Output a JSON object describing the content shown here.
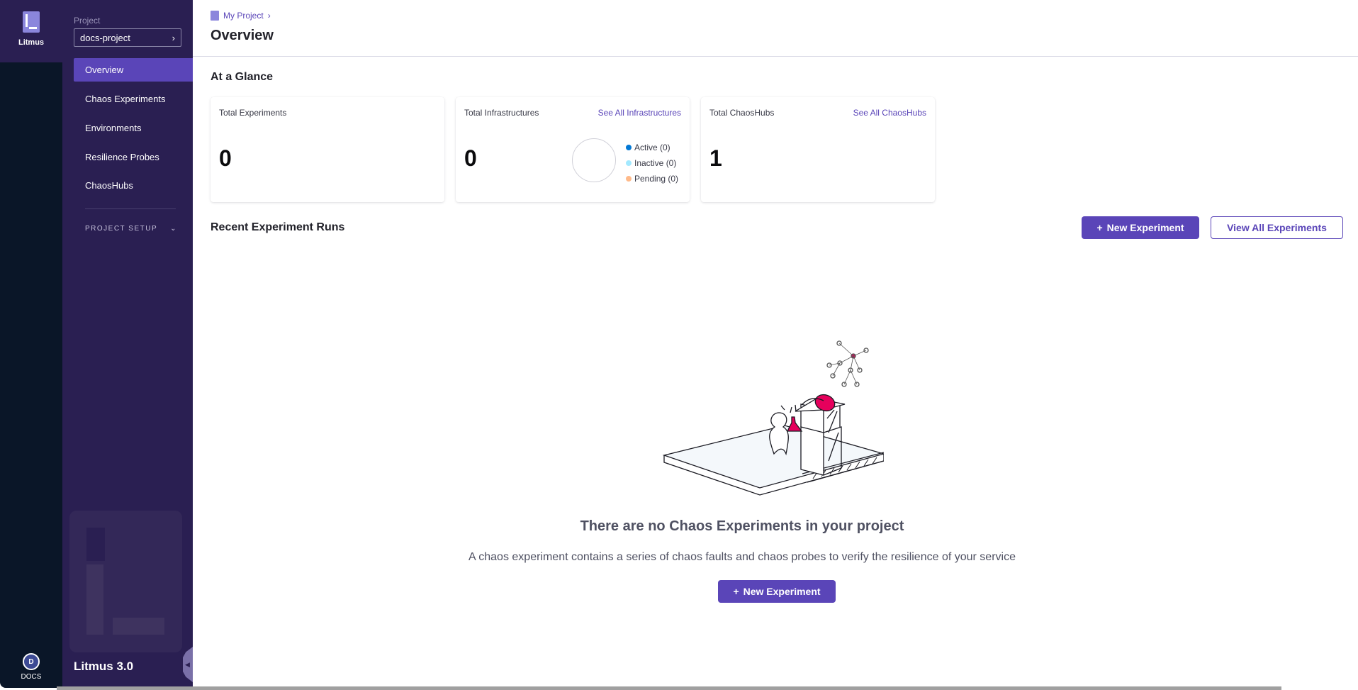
{
  "rail": {
    "brand": "Litmus",
    "docs_initial": "D",
    "docs_label": "DOCS"
  },
  "nav": {
    "project_label": "Project",
    "project_value": "docs-project",
    "items": [
      {
        "label": "Overview",
        "active": true
      },
      {
        "label": "Chaos Experiments"
      },
      {
        "label": "Environments"
      },
      {
        "label": "Resilience Probes"
      },
      {
        "label": "ChaosHubs"
      }
    ],
    "project_setup": "PROJECT SETUP",
    "version": "Litmus 3.0"
  },
  "header": {
    "breadcrumb": "My Project",
    "title": "Overview"
  },
  "glance": {
    "title": "At a Glance",
    "experiments": {
      "label": "Total Experiments",
      "value": "0"
    },
    "infra": {
      "label": "Total Infrastructures",
      "link": "See All Infrastructures",
      "value": "0",
      "legend": [
        {
          "label": "Active (0)",
          "color": "#0278d5"
        },
        {
          "label": "Inactive (0)",
          "color": "#a3e9ff"
        },
        {
          "label": "Pending (0)",
          "color": "#ffba8a"
        }
      ]
    },
    "hubs": {
      "label": "Total ChaosHubs",
      "link": "See All ChaosHubs",
      "value": "1"
    }
  },
  "recent": {
    "title": "Recent Experiment Runs",
    "new_button": "New Experiment",
    "view_all_button": "View All Experiments"
  },
  "empty": {
    "title": "There are no Chaos Experiments in your project",
    "description": "A chaos experiment contains a series of chaos faults and chaos probes to verify the resilience of your service",
    "button": "New Experiment"
  },
  "colors": {
    "accent": "#5a45b8",
    "sidebar": "#2a1f52",
    "rail": "#0a1628",
    "illustration_accent": "#e6005c"
  }
}
